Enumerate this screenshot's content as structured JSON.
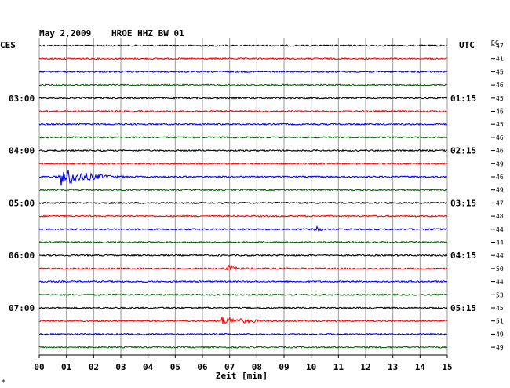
{
  "header": {
    "date": "May 2,2009",
    "station": "HROE HHZ BW 01",
    "left_tz": "CES",
    "right_tz": "UTC",
    "dc_label": "DC"
  },
  "chart_data": {
    "type": "line",
    "subtype": "helicorder",
    "xlabel": "Zeit [min]",
    "xlim": [
      0,
      15
    ],
    "x_ticks": [
      "00",
      "01",
      "02",
      "03",
      "04",
      "05",
      "06",
      "07",
      "08",
      "09",
      "10",
      "11",
      "12",
      "13",
      "14",
      "15"
    ],
    "grid": true,
    "trace_colors": [
      "#000000",
      "#ff0000",
      "#0000ff",
      "#006400"
    ],
    "left_time_labels": [
      "03:00",
      "04:00",
      "05:00",
      "06:00",
      "07:00"
    ],
    "right_time_labels": [
      "01:15",
      "02:15",
      "03:15",
      "04:15",
      "05:15"
    ],
    "dc_offsets": [
      "-47",
      "-41",
      "-45",
      "-46",
      "-45",
      "-46",
      "-45",
      "-46",
      "-46",
      "-49",
      "-46",
      "-49",
      "-47",
      "-48",
      "-44",
      "-44",
      "-44",
      "-50",
      "-44",
      "-53",
      "-45",
      "-51",
      "-49",
      "-49"
    ],
    "events": [
      {
        "line": 10,
        "start_min": 0.8,
        "peak_amplitude": "high",
        "decay_min": 3.0
      },
      {
        "line": 14,
        "start_min": 10.2,
        "peak_amplitude": "low",
        "decay_min": 0.6
      },
      {
        "line": 17,
        "start_min": 6.9,
        "peak_amplitude": "low",
        "decay_min": 1.5
      },
      {
        "line": 21,
        "start_min": 6.7,
        "peak_amplitude": "medium",
        "decay_min": 3.0
      }
    ]
  },
  "corner_mark": "*"
}
